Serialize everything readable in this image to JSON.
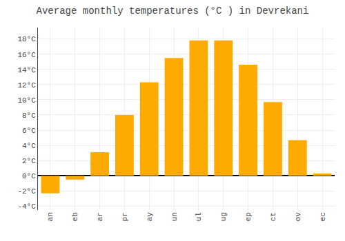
{
  "chart_data": {
    "type": "bar",
    "title": "Average monthly temperatures (°C ) in Devrekani",
    "categories": [
      "an",
      "eb",
      "ar",
      "pr",
      "ay",
      "un",
      "ul",
      "ug",
      "ep",
      "ct",
      "ov",
      "ec"
    ],
    "values": [
      -2.3,
      -0.5,
      3.1,
      8.0,
      12.3,
      15.5,
      17.8,
      17.8,
      14.6,
      9.7,
      4.7,
      0.3
    ],
    "color": "#FFAA00",
    "ylim": [
      -4.5,
      19.5
    ],
    "yticks": [
      {
        "value": -4,
        "label": "-4°C"
      },
      {
        "value": -2,
        "label": "-2°C"
      },
      {
        "value": 0,
        "label": "0°C"
      },
      {
        "value": 2,
        "label": "2°C"
      },
      {
        "value": 4,
        "label": "4°C"
      },
      {
        "value": 6,
        "label": "6°C"
      },
      {
        "value": 8,
        "label": "8°C"
      },
      {
        "value": 10,
        "label": "10°C"
      },
      {
        "value": 12,
        "label": "12°C"
      },
      {
        "value": 14,
        "label": "14°C"
      },
      {
        "value": 16,
        "label": "16°C"
      },
      {
        "value": 18,
        "label": "18°C"
      }
    ],
    "grid": true
  }
}
